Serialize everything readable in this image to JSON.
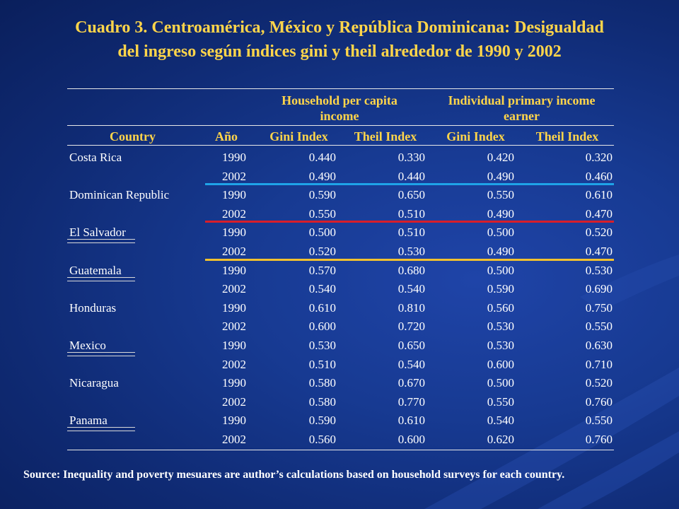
{
  "title": {
    "line1": "Cuadro 3. Centroamérica, México y República Dominicana: Desigualdad",
    "line2": "del ingreso según índices gini y theil alrededor de 1990 y 2002"
  },
  "table": {
    "group_headers": {
      "household": [
        "Household per capita",
        "income"
      ],
      "individual": [
        "Individual primary income",
        "earner"
      ]
    },
    "columns": [
      "Country",
      "Año",
      "Gini Index",
      "Theil Index",
      "Gini Index",
      "Theil Index"
    ],
    "rows": [
      {
        "country": "Costa Rica",
        "year": "1990",
        "hh_gini": "0.440",
        "hh_theil": "0.330",
        "ind_gini": "0.420",
        "ind_theil": "0.320"
      },
      {
        "country": "",
        "year": "2002",
        "hh_gini": "0.490",
        "hh_theil": "0.440",
        "ind_gini": "0.490",
        "ind_theil": "0.460"
      },
      {
        "country": "Dominican Republic",
        "year": "1990",
        "hh_gini": "0.590",
        "hh_theil": "0.650",
        "ind_gini": "0.550",
        "ind_theil": "0.610"
      },
      {
        "country": "",
        "year": "2002",
        "hh_gini": "0.550",
        "hh_theil": "0.510",
        "ind_gini": "0.490",
        "ind_theil": "0.470"
      },
      {
        "country": "El Salvador",
        "year": "1990",
        "hh_gini": "0.500",
        "hh_theil": "0.510",
        "ind_gini": "0.500",
        "ind_theil": "0.520"
      },
      {
        "country": "",
        "year": "2002",
        "hh_gini": "0.520",
        "hh_theil": "0.530",
        "ind_gini": "0.490",
        "ind_theil": "0.470"
      },
      {
        "country": "Guatemala",
        "year": "1990",
        "hh_gini": "0.570",
        "hh_theil": "0.680",
        "ind_gini": "0.500",
        "ind_theil": "0.530"
      },
      {
        "country": "",
        "year": "2002",
        "hh_gini": "0.540",
        "hh_theil": "0.540",
        "ind_gini": "0.590",
        "ind_theil": "0.690"
      },
      {
        "country": "Honduras",
        "year": "1990",
        "hh_gini": "0.610",
        "hh_theil": "0.810",
        "ind_gini": "0.560",
        "ind_theil": "0.750"
      },
      {
        "country": "",
        "year": "2002",
        "hh_gini": "0.600",
        "hh_theil": "0.720",
        "ind_gini": "0.530",
        "ind_theil": "0.550"
      },
      {
        "country": "Mexico",
        "year": "1990",
        "hh_gini": "0.530",
        "hh_theil": "0.650",
        "ind_gini": "0.530",
        "ind_theil": "0.630"
      },
      {
        "country": "",
        "year": "2002",
        "hh_gini": "0.510",
        "hh_theil": "0.540",
        "ind_gini": "0.600",
        "ind_theil": "0.710"
      },
      {
        "country": "Nicaragua",
        "year": "1990",
        "hh_gini": "0.580",
        "hh_theil": "0.670",
        "ind_gini": "0.500",
        "ind_theil": "0.520"
      },
      {
        "country": "",
        "year": "2002",
        "hh_gini": "0.580",
        "hh_theil": "0.770",
        "ind_gini": "0.550",
        "ind_theil": "0.760"
      },
      {
        "country": "Panama",
        "year": "1990",
        "hh_gini": "0.590",
        "hh_theil": "0.610",
        "ind_gini": "0.540",
        "ind_theil": "0.550"
      },
      {
        "country": "",
        "year": "2002",
        "hh_gini": "0.560",
        "hh_theil": "0.600",
        "ind_gini": "0.620",
        "ind_theil": "0.760"
      }
    ],
    "underlined_countries": [
      "El Salvador",
      "Guatemala",
      "Mexico",
      "Panama"
    ],
    "separators": [
      {
        "after_row": 1,
        "color": "#1fa3e8"
      },
      {
        "after_row": 3,
        "color": "#d81e2a"
      },
      {
        "after_row": 5,
        "color": "#f2c12e"
      }
    ]
  },
  "source": "Source: Inequality and poverty mesuares are author’s calculations based on household surveys for each country.",
  "colors": {
    "title": "#ffd54a",
    "header": "#ffd54a",
    "text": "#ffffff",
    "background": "#173a92"
  }
}
